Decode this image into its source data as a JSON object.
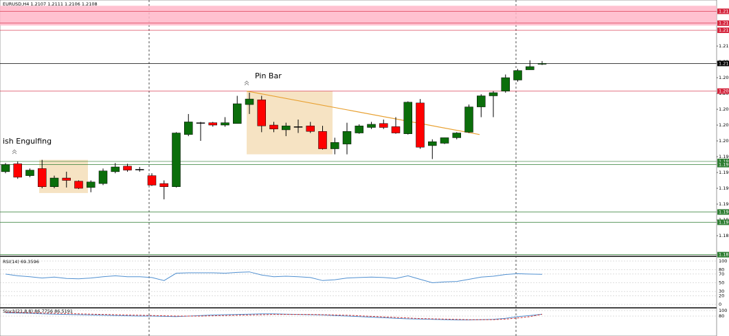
{
  "chart_data": [
    {
      "type": "candlestick",
      "title": "EURUSD,H4 1.2107 1.2111 1.2106 1.2108",
      "open": [
        1.1971,
        1.1981,
        1.1966,
        1.1975,
        1.1952,
        1.1963,
        1.1959,
        1.1951,
        1.1956,
        1.1971,
        1.1978,
        1.1974,
        1.1966,
        1.1956,
        1.1952,
        1.2018,
        1.2033,
        1.2033,
        1.203,
        1.2032,
        1.2056,
        1.2062,
        1.203,
        1.2024,
        1.2028,
        1.2029,
        1.2022,
        1.2,
        1.2006,
        1.202,
        1.2027,
        1.2032,
        1.2028,
        1.2019,
        1.2058,
        1.2004,
        1.2007,
        1.2014,
        1.2021,
        1.2053,
        1.2067,
        1.2073,
        1.2087,
        1.21,
        1.2107
      ],
      "high": [
        1.1982,
        1.1984,
        1.1975,
        1.1986,
        1.1966,
        1.1971,
        1.196,
        1.196,
        1.1975,
        1.1982,
        1.1981,
        1.1977,
        1.1969,
        1.196,
        1.2021,
        1.2044,
        1.2034,
        1.2034,
        1.204,
        1.2067,
        1.2071,
        1.2067,
        1.2034,
        1.2033,
        1.2037,
        1.2034,
        1.2029,
        1.2014,
        1.2033,
        1.2031,
        1.2034,
        1.2037,
        1.204,
        1.206,
        1.2063,
        1.2012,
        1.2014,
        1.2021,
        1.2056,
        1.2069,
        1.2073,
        1.2094,
        1.2101,
        1.2112,
        1.2111
      ],
      "low": [
        1.1969,
        1.1962,
        1.1964,
        1.195,
        1.195,
        1.1951,
        1.1949,
        1.1945,
        1.1954,
        1.1969,
        1.1971,
        1.1971,
        1.1953,
        1.1936,
        1.1951,
        1.2016,
        1.201,
        1.2028,
        1.2028,
        1.2032,
        1.2044,
        1.2021,
        1.2021,
        1.2016,
        1.202,
        1.202,
        1.1999,
        1.1993,
        1.1993,
        1.2019,
        1.2025,
        1.2025,
        1.2019,
        1.2018,
        1.2,
        1.1987,
        1.2006,
        1.2012,
        1.202,
        1.204,
        1.204,
        1.2071,
        1.2085,
        1.21,
        1.2106
      ],
      "close": [
        1.198,
        1.1964,
        1.1973,
        1.1952,
        1.1963,
        1.196,
        1.195,
        1.1958,
        1.1972,
        1.1977,
        1.1973,
        1.1974,
        1.1954,
        1.1952,
        1.202,
        1.2034,
        1.2033,
        1.203,
        1.2033,
        1.2057,
        1.2063,
        1.2029,
        1.2025,
        1.2029,
        1.2028,
        1.2022,
        1.2,
        1.2008,
        1.2022,
        1.2029,
        1.2031,
        1.2027,
        1.202,
        1.2059,
        1.2002,
        1.2009,
        1.2014,
        1.202,
        1.2053,
        1.2067,
        1.2071,
        1.209,
        1.2099,
        1.2104,
        1.2108
      ],
      "up_color": "#0b6e0b",
      "down_color": "#ff0000",
      "ylim": [
        1.18648,
        1.21883
      ],
      "yticks": [
        1.189,
        1.191,
        1.193,
        1.195,
        1.197,
        1.199,
        1.201,
        1.203,
        1.205,
        1.207,
        1.209,
        1.211,
        1.213
      ],
      "zones": [
        {
          "top": 1.2181,
          "bottom": 1.2156,
          "color": "#ffb6c8"
        },
        {
          "top": 1.1986,
          "bottom": 1.1944,
          "color": "#f5deb8"
        },
        {
          "top": 1.2073,
          "bottom": 1.1993,
          "color": "#f5deb8"
        }
      ],
      "levels": [
        {
          "value": 1.2174,
          "label": "1.217",
          "color": "#d4243c"
        },
        {
          "value": 1.2159,
          "label": "1.216",
          "color": "#d4243c"
        },
        {
          "value": 1.215,
          "label": "1.215",
          "color": "#d4243c"
        },
        {
          "value": 1.2073,
          "label": "1.207",
          "color": "#d4243c"
        },
        {
          "value": 1.2108,
          "label": "1.211",
          "color": "#000000"
        },
        {
          "value": 1.1984,
          "label": "1.198",
          "color": "#2e7d32"
        },
        {
          "value": 1.198,
          "label": "1.198",
          "color": "#2e7d32"
        },
        {
          "value": 1.192,
          "label": "1.192",
          "color": "#2e7d32"
        },
        {
          "value": 1.1907,
          "label": "1.191",
          "color": "#2e7d32"
        },
        {
          "value": 1.1866,
          "label": "1.187",
          "color": "#2e7d32"
        }
      ],
      "trendline": {
        "values": [
          1.2073,
          1.2018
        ],
        "color": "#e8a030"
      },
      "annotations": [
        "ish Engulfing",
        "Pin Bar"
      ]
    },
    {
      "type": "line",
      "title": "RSI(14) 69.3596",
      "series": [
        {
          "color": "#4f8fd0",
          "values": [
            70,
            66,
            64,
            61,
            63,
            60,
            59,
            61,
            64,
            66,
            64,
            64,
            62,
            55,
            72,
            73,
            73,
            73,
            72,
            74,
            75,
            68,
            64,
            65,
            64,
            62,
            55,
            57,
            61,
            62,
            63,
            62,
            60,
            66,
            58,
            50,
            52,
            53,
            58,
            63,
            65,
            69,
            71,
            70,
            69.36
          ]
        }
      ],
      "ylim": [
        -6.3,
        106.3
      ],
      "yticks": [
        0,
        20,
        30,
        50,
        70,
        80,
        100
      ],
      "grid": true
    },
    {
      "type": "line",
      "title": "Stoch(21,8,8) 86.7756 86.5191",
      "series": [
        {
          "color": "#4f8fd0",
          "values": [
            92,
            91,
            90,
            88,
            87,
            86,
            85,
            84,
            83,
            82,
            81,
            80,
            80,
            79,
            78,
            80,
            82,
            84,
            85,
            86,
            87,
            88,
            88,
            87,
            86,
            85,
            84,
            82,
            80,
            78,
            76,
            74,
            72,
            70,
            69,
            68,
            67,
            66,
            66,
            67,
            68,
            72,
            78,
            82,
            86.78
          ]
        },
        {
          "color": "#d03030",
          "dashed": true,
          "values": [
            94,
            93,
            92,
            91,
            90,
            89,
            88,
            87,
            86,
            85,
            84,
            83,
            82,
            81,
            80,
            80,
            80,
            81,
            82,
            83,
            84,
            85,
            86,
            86,
            86,
            86,
            85,
            84,
            83,
            81,
            79,
            77,
            75,
            73,
            71,
            70,
            69,
            68,
            67,
            67,
            67,
            69,
            73,
            78,
            86.52
          ]
        }
      ],
      "ylim": [
        7.5,
        107.5
      ],
      "yticks": [
        80,
        100
      ],
      "grid": true
    }
  ]
}
